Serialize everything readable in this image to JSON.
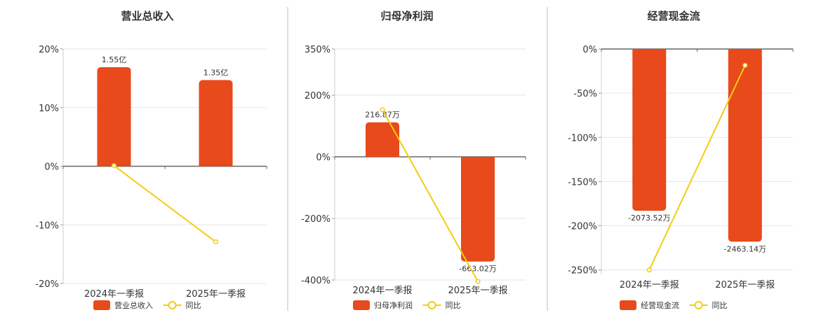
{
  "chart_data": [
    {
      "type": "bar",
      "title": "营业总收入",
      "categories": [
        "2024年一季报",
        "2025年一季报"
      ],
      "ylim": [
        -20,
        20
      ],
      "yticks": [
        20,
        10,
        0,
        -10,
        -20
      ],
      "tick_suffix": "%",
      "series": [
        {
          "name": "营业总收入",
          "kind": "bar",
          "color": "#E84A1B",
          "values": [
            16.9,
            14.7
          ],
          "labels": [
            "1.55亿",
            "1.35亿"
          ]
        },
        {
          "name": "同比",
          "kind": "line",
          "color": "#F2CD13",
          "values": [
            0.1,
            -12.9
          ]
        }
      ],
      "grid": true,
      "legend": "bottom"
    },
    {
      "type": "bar",
      "title": "归母净利润",
      "categories": [
        "2024年一季报",
        "2025年一季报"
      ],
      "ylim": [
        -400,
        350
      ],
      "yticks": [
        350,
        200,
        0,
        -200,
        -400
      ],
      "tick_suffix": "%",
      "series": [
        {
          "name": "归母净利润",
          "kind": "bar",
          "color": "#E84A1B",
          "values": [
            112,
            -340
          ],
          "labels": [
            "216.87万",
            "-663.02万"
          ]
        },
        {
          "name": "同比",
          "kind": "line",
          "color": "#F2CD13",
          "values": [
            153,
            -405
          ]
        }
      ],
      "grid": true,
      "legend": "bottom"
    },
    {
      "type": "bar",
      "title": "经营现金流",
      "categories": [
        "2024年一季报",
        "2025年一季报"
      ],
      "ylim": [
        -255,
        0
      ],
      "yticks": [
        0,
        -50,
        -100,
        -150,
        -200,
        -250
      ],
      "tick_suffix": "%",
      "series": [
        {
          "name": "经营现金流",
          "kind": "bar",
          "color": "#E84A1B",
          "values": [
            -183,
            -218
          ],
          "labels": [
            "-2073.52万",
            "-2463.14万"
          ]
        },
        {
          "name": "同比",
          "kind": "line",
          "color": "#F2CD13",
          "values": [
            -250,
            -18.5
          ]
        }
      ],
      "grid": true,
      "legend": "bottom"
    }
  ]
}
